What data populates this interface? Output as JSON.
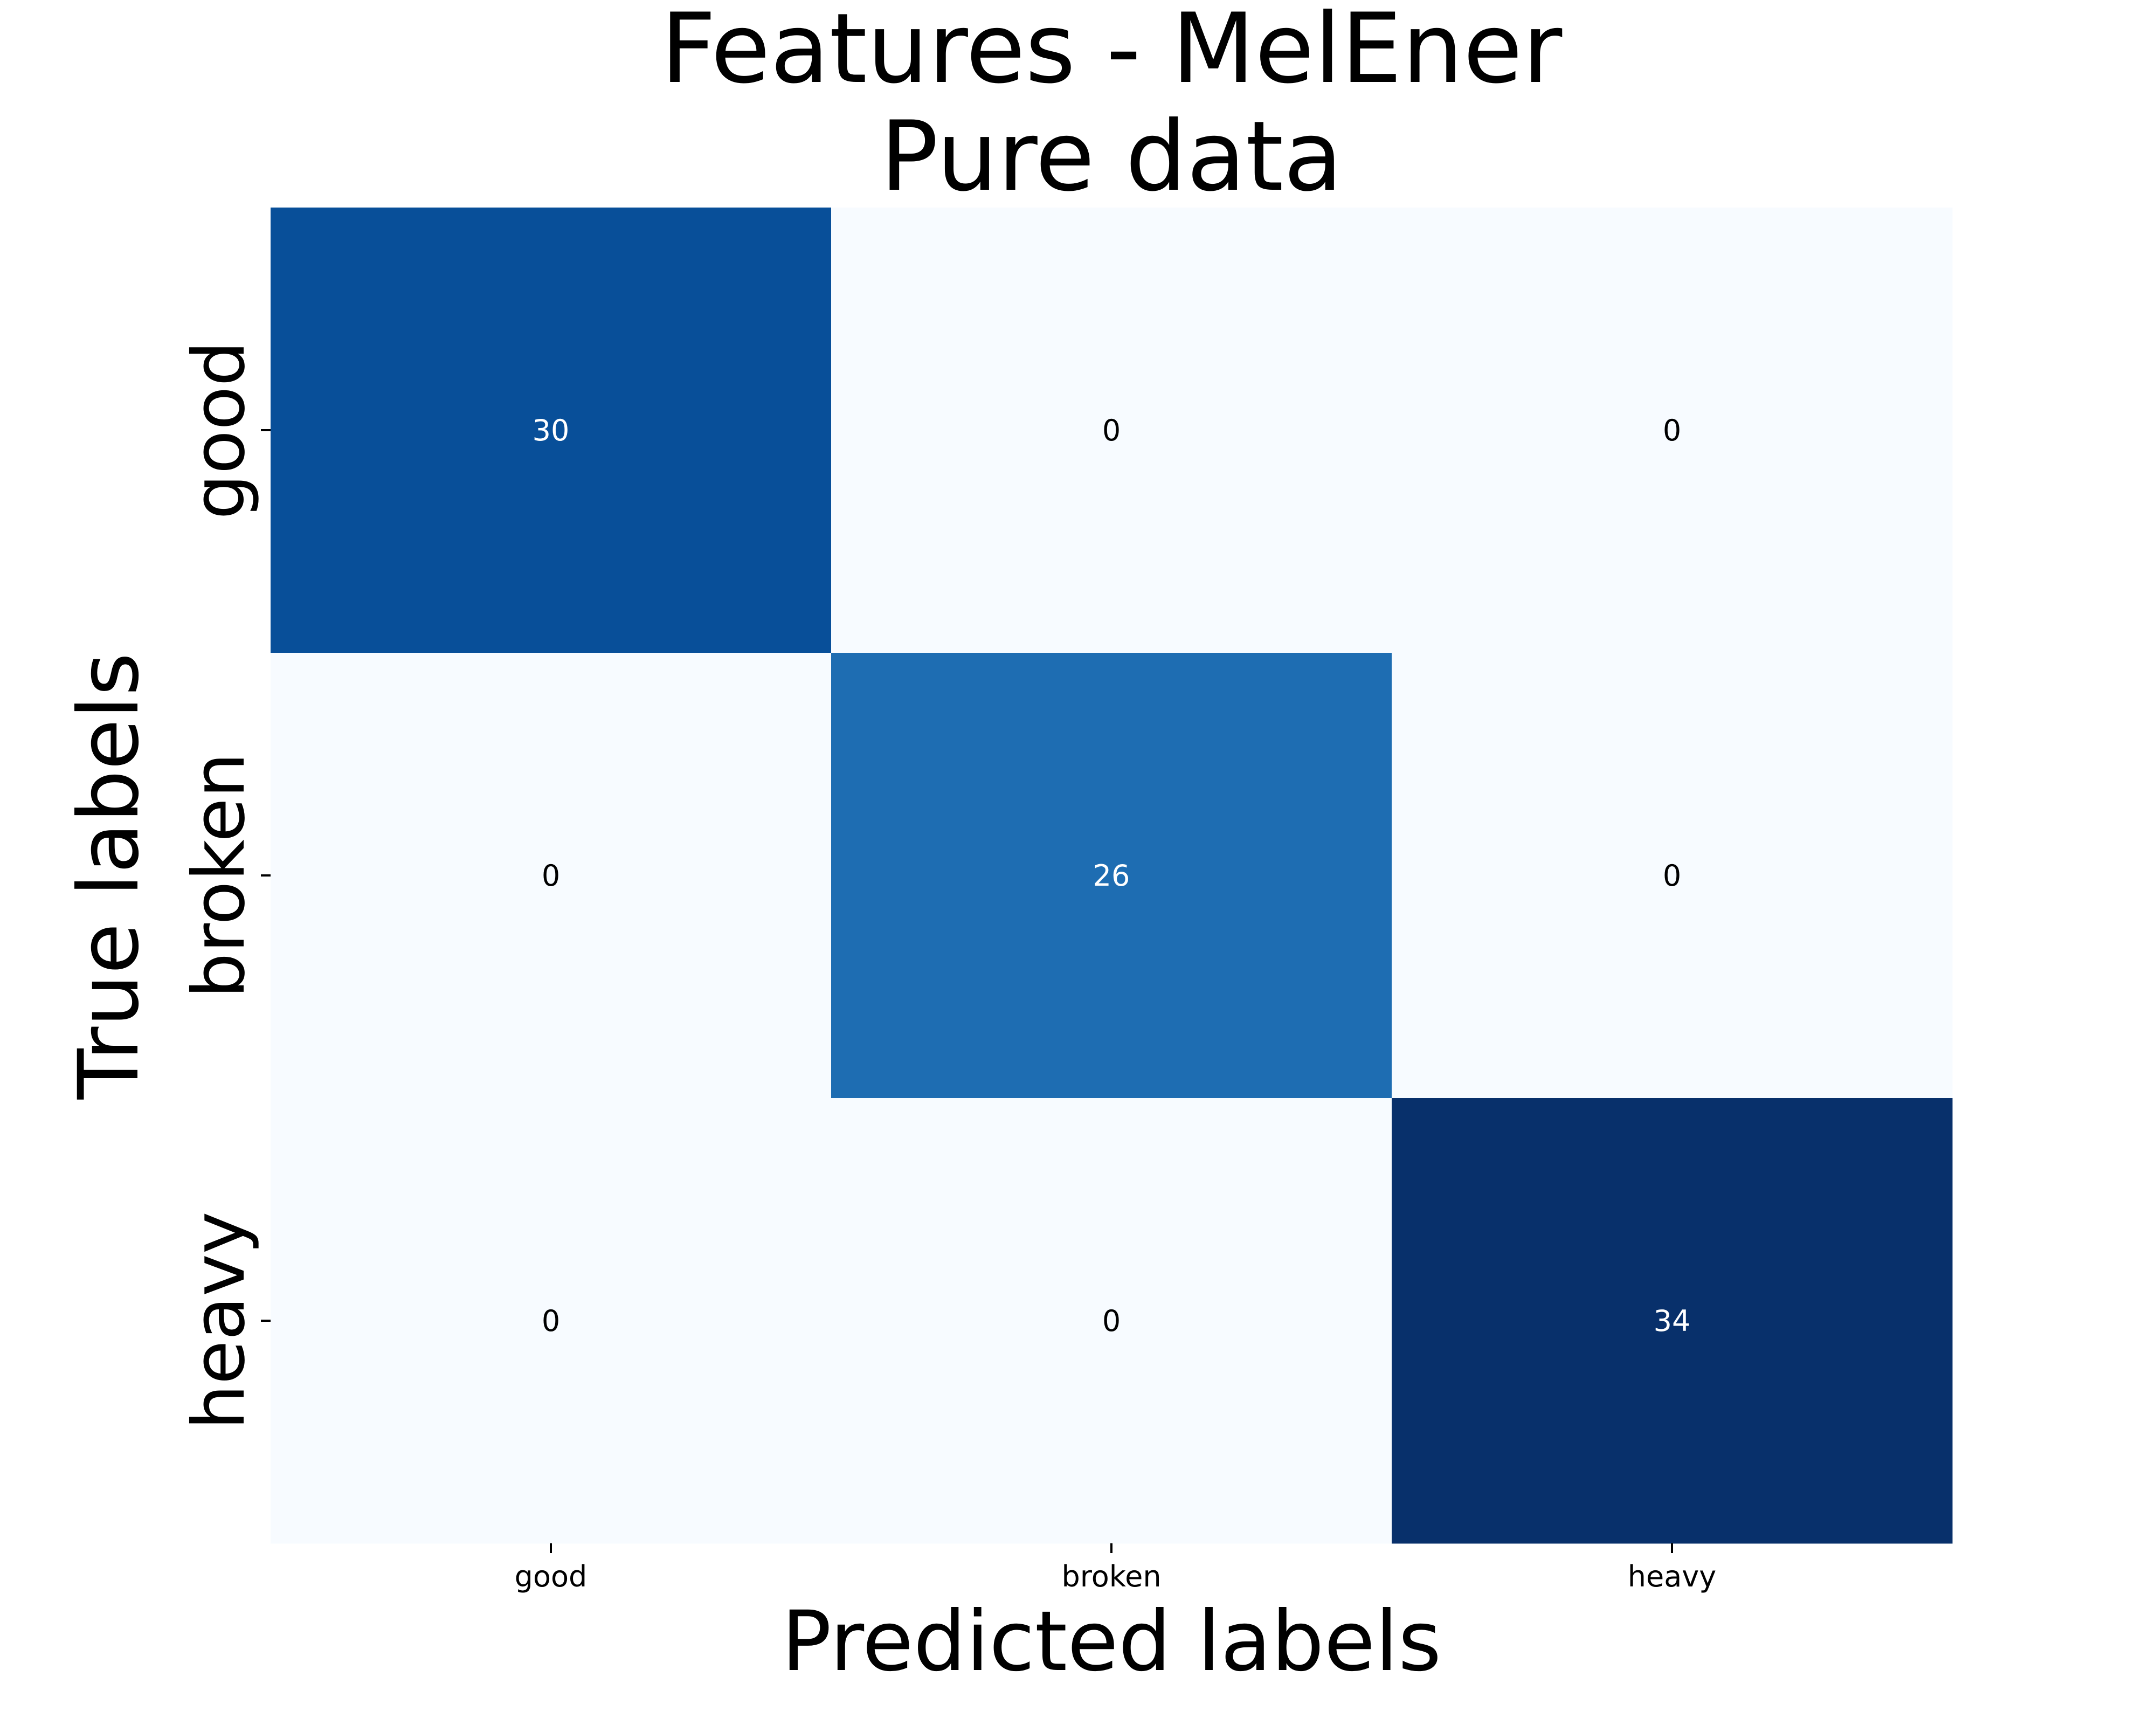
{
  "chart_data": {
    "type": "heatmap",
    "title": [
      "Features - MelEner",
      "Pure data"
    ],
    "xlabel": "Predicted labels",
    "ylabel": "True labels",
    "x_categories": [
      "good",
      "broken",
      "heavy"
    ],
    "y_categories": [
      "good",
      "broken",
      "heavy"
    ],
    "matrix": [
      [
        30,
        0,
        0
      ],
      [
        0,
        26,
        0
      ],
      [
        0,
        0,
        34
      ]
    ],
    "value_range": [
      0,
      34
    ],
    "colormap": "Blues",
    "colorbar": false,
    "colors": {
      "low": "#f7fbff",
      "mid": "#6aaed6",
      "high": "#08306b",
      "dark_text": "#000000",
      "light_text": "#ffffff"
    }
  }
}
